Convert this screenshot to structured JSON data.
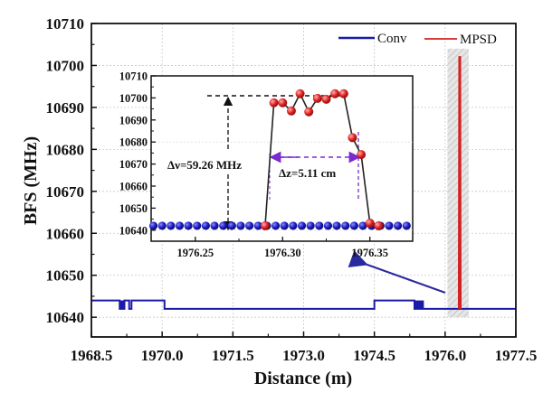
{
  "chart_data": {
    "type": "line",
    "xlabel": "Distance (m)",
    "ylabel": "BFS (MHz)",
    "xlim": [
      1968.5,
      1977.5
    ],
    "ylim": [
      10635.3,
      10710
    ],
    "xticks": [
      1968.5,
      1970.0,
      1971.5,
      1973.0,
      1974.5,
      1976.0,
      1977.5
    ],
    "xtick_labels": [
      "1968.5",
      "1970.0",
      "1971.5",
      "1973.0",
      "1974.5",
      "1976.0",
      "1977.5"
    ],
    "yticks": [
      10640,
      10650,
      10660,
      10670,
      10680,
      10690,
      10700,
      10710
    ],
    "ytick_labels": [
      "10640",
      "10650",
      "10660",
      "10670",
      "10680",
      "10690",
      "10700",
      "10710"
    ],
    "grid": true,
    "legend": {
      "placement": "top-right",
      "entries": [
        "Conv",
        "MPSD"
      ]
    },
    "colors": {
      "conv": "#1a1aa8",
      "mpsd": "#d42020",
      "purple": "#7a2ad0",
      "highlight": "#d8d8d8"
    },
    "series": [
      {
        "name": "Conv",
        "x": [
          1968.5,
          1969.1,
          1969.1,
          1969.2,
          1969.2,
          1969.3,
          1969.3,
          1969.35,
          1969.35,
          1970.05,
          1970.05,
          1974.5,
          1974.5,
          1975.35,
          1975.35,
          1975.55,
          1975.55,
          1977.5
        ],
        "y": [
          10644,
          10644,
          10642,
          10642,
          10644,
          10644,
          10642,
          10642,
          10644,
          10644,
          10642,
          10642,
          10644,
          10644,
          10642,
          10642,
          10642,
          10642
        ]
      },
      {
        "name": "MPSD",
        "x": [
          1976.29,
          1976.3,
          1976.31,
          1976.32,
          1976.33
        ],
        "y": [
          10642,
          10702,
          10702,
          10702,
          10642
        ]
      }
    ],
    "filled_blocks": [
      {
        "x": [
          1969.1,
          1969.22
        ],
        "y": [
          10642,
          10644
        ]
      },
      {
        "x": [
          1975.35,
          1975.55
        ],
        "y": [
          10642,
          10644
        ]
      }
    ],
    "highlight_region": {
      "x": [
        1976.05,
        1976.5
      ],
      "y": [
        10640,
        10704
      ]
    },
    "inset": {
      "xlim": [
        1976.2247,
        1976.3745
      ],
      "ylim": [
        10635,
        10710
      ],
      "xticks": [
        1976.25,
        1976.3,
        1976.35
      ],
      "xtick_labels": [
        "1976.25",
        "1976.30",
        "1976.35"
      ],
      "yticks": [
        10640,
        10650,
        10660,
        10670,
        10680,
        10690,
        10700,
        10710
      ],
      "ytick_labels": [
        "10640",
        "10650",
        "10660",
        "10670",
        "10680",
        "10690",
        "10700",
        "10710"
      ],
      "conv_points": {
        "x_start": 1976.226,
        "x_step": 0.005,
        "count": 31,
        "y": 10642
      },
      "mpsd_points": {
        "x": [
          1976.29,
          1976.295,
          1976.3,
          1976.305,
          1976.31,
          1976.315,
          1976.32,
          1976.325,
          1976.33,
          1976.335,
          1976.34,
          1976.345,
          1976.35,
          1976.355
        ],
        "y": [
          10642,
          10697.8,
          10697.8,
          10694.1,
          10701.9,
          10693.7,
          10699.8,
          10699.4,
          10701.9,
          10701.9,
          10682.0,
          10674.3,
          10643.2,
          10642
        ]
      },
      "annotations": {
        "delta_nu": "Δν=59.26 MHz",
        "delta_z": "Δz=5.11 cm"
      }
    }
  }
}
